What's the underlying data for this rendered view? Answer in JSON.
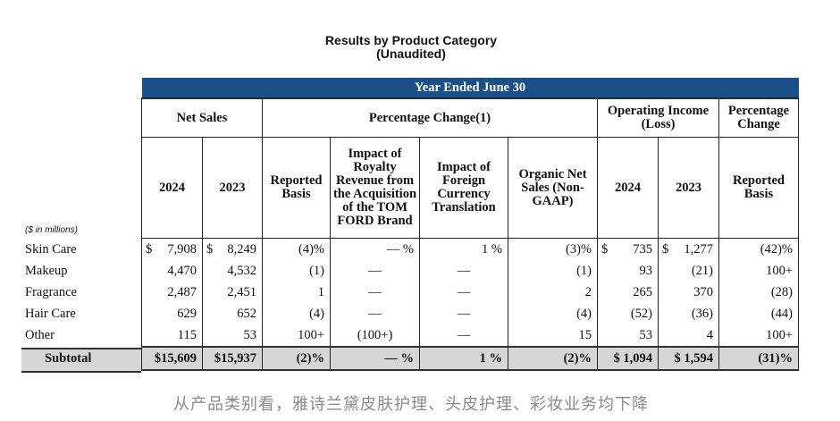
{
  "title": "Results by Product Category",
  "subtitle": "(Unaudited)",
  "band": "Year Ended June 30",
  "groups": {
    "net_sales": "Net Sales",
    "pct_change": "Percentage Change(1)",
    "op_income": "Operating Income (Loss)",
    "pct_change2": "Percentage Change"
  },
  "columns": {
    "y2024": "2024",
    "y2023": "2023",
    "reported": "Reported Basis",
    "royalty": "Impact of Royalty Revenue from the Acquisition of the TOM FORD Brand",
    "fx": "Impact of Foreign Currency Translation",
    "organic": "Organic Net Sales (Non-GAAP)",
    "oi2024": "2024",
    "oi2023": "2023",
    "reported2": "Reported Basis"
  },
  "units_label": "($ in millions)",
  "rows": [
    {
      "label": "Skin Care",
      "ns24": "7,908",
      "ns23": "8,249",
      "rep": "(4)%",
      "roy": "— %",
      "fx": "1 %",
      "org": "(3)%",
      "oi24": "735",
      "oi23": "1,277",
      "rep2": "(42)%"
    },
    {
      "label": "Makeup",
      "ns24": "4,470",
      "ns23": "4,532",
      "rep": "(1)",
      "roy": "—",
      "fx": "—",
      "org": "(1)",
      "oi24": "93",
      "oi23": "(21)",
      "rep2": "100+"
    },
    {
      "label": "Fragrance",
      "ns24": "2,487",
      "ns23": "2,451",
      "rep": "1",
      "roy": "—",
      "fx": "—",
      "org": "2",
      "oi24": "265",
      "oi23": "370",
      "rep2": "(28)"
    },
    {
      "label": "Hair Care",
      "ns24": "629",
      "ns23": "652",
      "rep": "(4)",
      "roy": "—",
      "fx": "—",
      "org": "(4)",
      "oi24": "(52)",
      "oi23": "(36)",
      "rep2": "(44)"
    },
    {
      "label": "Other",
      "ns24": "115",
      "ns23": "53",
      "rep": "100+",
      "roy": "(100+)",
      "fx": "—",
      "org": "15",
      "oi24": "53",
      "oi23": "4",
      "rep2": "100+"
    }
  ],
  "subtotal": {
    "label": "Subtotal",
    "ns24": "$15,609",
    "ns23": "$15,937",
    "rep": "(2)%",
    "roy": "— %",
    "fx": "1 %",
    "org": "(2)%",
    "oi24": "$ 1,094",
    "oi23": "$ 1,594",
    "rep2": "(31)%"
  },
  "currency": "$",
  "caption": "从产品类别看，雅诗兰黛皮肤护理、头皮护理、彩妆业务均下降"
}
